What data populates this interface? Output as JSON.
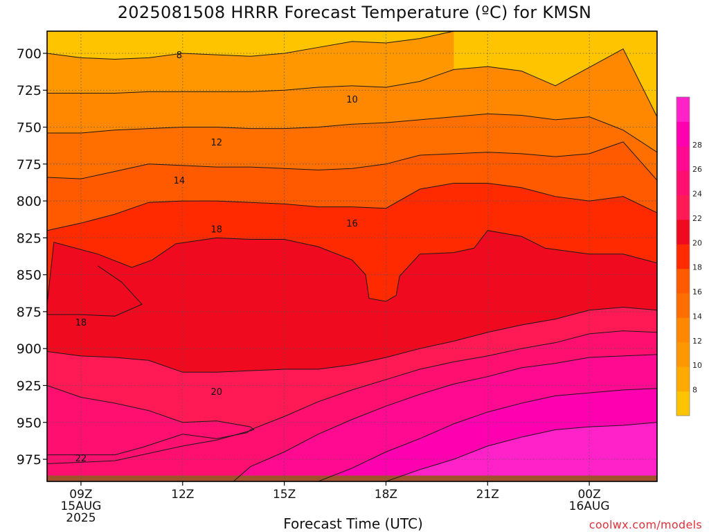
{
  "chart_data": {
    "type": "heatmap",
    "title": "2025081508 HRRR Forecast Temperature (ºC) for KMSN",
    "xlabel": "Forecast Time (UTC)",
    "credit": "coolwx.com/models",
    "x_ticks": [
      {
        "hour": 9,
        "lines": [
          "09Z",
          "15AUG",
          "2025"
        ]
      },
      {
        "hour": 12,
        "lines": [
          "12Z"
        ]
      },
      {
        "hour": 15,
        "lines": [
          "15Z"
        ]
      },
      {
        "hour": 18,
        "lines": [
          "18Z"
        ]
      },
      {
        "hour": 21,
        "lines": [
          "21Z"
        ]
      },
      {
        "hour": 24,
        "lines": [
          "00Z",
          "16AUG"
        ]
      }
    ],
    "xlim": [
      8,
      26
    ],
    "ylabel": "",
    "y_ticks": [
      700,
      725,
      750,
      775,
      800,
      825,
      850,
      875,
      900,
      925,
      950,
      975
    ],
    "ylim": [
      685,
      990
    ],
    "grid": true,
    "colorbar": {
      "levels": [
        6,
        8,
        10,
        12,
        14,
        16,
        18,
        20,
        22,
        24,
        26,
        28,
        30
      ],
      "labels": [
        8,
        10,
        12,
        14,
        16,
        18,
        20,
        22,
        24,
        26,
        28
      ],
      "colors": [
        "#ffc400",
        "#ffaa00",
        "#ff9800",
        "#ff8800",
        "#ff6f00",
        "#ff5a00",
        "#ff2a00",
        "#ef0a20",
        "#ff1a55",
        "#ff1070",
        "#ff0a90",
        "#ff00b0",
        "#ff22c8"
      ]
    },
    "contours": [
      {
        "level": 8,
        "label_at": [
          11.9,
          701
        ],
        "points": [
          [
            8,
            700
          ],
          [
            9,
            703
          ],
          [
            10,
            704
          ],
          [
            11,
            703
          ],
          [
            12,
            700
          ],
          [
            13,
            701
          ],
          [
            14,
            702
          ],
          [
            15,
            700
          ],
          [
            16,
            696
          ],
          [
            17,
            692
          ],
          [
            18,
            693
          ],
          [
            19,
            690
          ],
          [
            20,
            685
          ]
        ]
      },
      {
        "level": 10,
        "label_at": [
          17.0,
          731
        ],
        "points": [
          [
            8,
            727
          ],
          [
            9,
            727
          ],
          [
            10,
            727
          ],
          [
            11,
            726
          ],
          [
            12,
            726
          ],
          [
            13,
            726
          ],
          [
            14,
            726
          ],
          [
            15,
            725
          ],
          [
            16,
            723
          ],
          [
            17,
            722
          ],
          [
            18,
            723
          ],
          [
            19,
            719
          ],
          [
            20,
            711
          ],
          [
            21,
            709
          ],
          [
            22,
            712
          ],
          [
            23,
            722
          ],
          [
            25,
            697
          ],
          [
            26,
            743
          ]
        ]
      },
      {
        "level": 12,
        "label_at": [
          13.0,
          760
        ],
        "points": [
          [
            8,
            754
          ],
          [
            9,
            754
          ],
          [
            10,
            752
          ],
          [
            11,
            751
          ],
          [
            12,
            750
          ],
          [
            13,
            750
          ],
          [
            14,
            751
          ],
          [
            15,
            751
          ],
          [
            16,
            750
          ],
          [
            17,
            748
          ],
          [
            18,
            747
          ],
          [
            19,
            745
          ],
          [
            20,
            743
          ],
          [
            21,
            741
          ],
          [
            22,
            742
          ],
          [
            23,
            745
          ],
          [
            24,
            743
          ],
          [
            25,
            752
          ],
          [
            26,
            767
          ]
        ]
      },
      {
        "level": 14,
        "label_at": [
          11.9,
          786
        ],
        "points": [
          [
            8,
            784
          ],
          [
            9,
            785
          ],
          [
            10,
            780
          ],
          [
            11,
            775
          ],
          [
            12,
            776
          ],
          [
            13,
            777
          ],
          [
            14,
            777
          ],
          [
            15,
            778
          ],
          [
            16,
            779
          ],
          [
            17,
            778
          ],
          [
            18,
            775
          ],
          [
            19,
            769
          ],
          [
            20,
            768
          ],
          [
            21,
            767
          ],
          [
            22,
            768
          ],
          [
            23,
            770
          ],
          [
            24,
            768
          ],
          [
            25,
            760
          ],
          [
            26,
            786
          ]
        ]
      },
      {
        "level": 16,
        "label_at": [
          17.0,
          815
        ],
        "points": [
          [
            8,
            820
          ],
          [
            9,
            815
          ],
          [
            10,
            809
          ],
          [
            11,
            801
          ],
          [
            12,
            800
          ],
          [
            13,
            800
          ],
          [
            14,
            801
          ],
          [
            15,
            802
          ],
          [
            16,
            804
          ],
          [
            17,
            804
          ],
          [
            18,
            805
          ],
          [
            19,
            792
          ],
          [
            20,
            788
          ],
          [
            21,
            788
          ],
          [
            22,
            791
          ],
          [
            23,
            797
          ],
          [
            24,
            800
          ],
          [
            25,
            797
          ],
          [
            26,
            808
          ]
        ]
      },
      {
        "level": 18,
        "label_at": [
          13.0,
          819
        ],
        "points": [
          [
            8,
            870
          ],
          [
            8.2,
            828
          ],
          [
            9.5,
            836
          ],
          [
            10.5,
            845
          ],
          [
            11.1,
            840
          ],
          [
            11.8,
            829
          ],
          [
            13,
            825
          ],
          [
            14,
            826
          ],
          [
            15,
            826
          ],
          [
            16,
            831
          ],
          [
            17,
            840
          ],
          [
            17.4,
            850
          ],
          [
            17.5,
            866
          ],
          [
            18,
            868
          ],
          [
            18.3,
            864
          ],
          [
            18.4,
            851
          ],
          [
            19,
            836
          ],
          [
            20,
            835
          ],
          [
            20.6,
            832
          ],
          [
            21,
            820
          ],
          [
            22,
            824
          ],
          [
            22.7,
            832
          ],
          [
            24,
            836
          ],
          [
            25,
            836
          ],
          [
            26,
            842
          ]
        ]
      },
      {
        "level": 18,
        "label_at": [
          9.0,
          882
        ],
        "points": [
          [
            8,
            877
          ],
          [
            9,
            877
          ],
          [
            10,
            878
          ],
          [
            10.8,
            870
          ],
          [
            10.2,
            855
          ],
          [
            9.5,
            844
          ]
        ]
      },
      {
        "level": 20,
        "label_at": [
          13.0,
          929
        ],
        "points": [
          [
            8,
            902
          ],
          [
            9,
            905
          ],
          [
            10,
            906
          ],
          [
            11,
            908
          ],
          [
            12,
            916
          ],
          [
            13,
            916
          ],
          [
            14,
            915
          ],
          [
            15,
            914
          ],
          [
            16,
            914
          ],
          [
            17,
            911
          ],
          [
            18,
            906
          ],
          [
            19,
            900
          ],
          [
            20,
            895
          ],
          [
            21,
            889
          ],
          [
            22,
            884
          ],
          [
            23,
            880
          ],
          [
            24,
            874
          ],
          [
            25,
            872
          ],
          [
            26,
            874
          ]
        ]
      },
      {
        "level": 22,
        "label_at": [
          9.0,
          974
        ],
        "points": [
          [
            8,
            972
          ],
          [
            9,
            972
          ],
          [
            10,
            972
          ],
          [
            10.8,
            967
          ],
          [
            12,
            958
          ],
          [
            13,
            961
          ],
          [
            13.9,
            957
          ],
          [
            14,
            955
          ],
          [
            15,
            946
          ],
          [
            16,
            936
          ],
          [
            17,
            928
          ],
          [
            18,
            921
          ],
          [
            19,
            914
          ],
          [
            20,
            909
          ],
          [
            21,
            905
          ],
          [
            22,
            900
          ],
          [
            23,
            896
          ],
          [
            24,
            890
          ],
          [
            25,
            888
          ],
          [
            26,
            889
          ]
        ]
      },
      {
        "level": 22,
        "label_at": null,
        "points": [
          [
            8,
            925
          ],
          [
            9,
            933
          ],
          [
            10,
            937
          ],
          [
            11,
            942
          ],
          [
            12,
            950
          ],
          [
            13,
            949
          ],
          [
            14,
            953
          ],
          [
            14.1,
            955
          ],
          [
            13,
            962
          ],
          [
            12,
            966
          ],
          [
            11,
            971
          ],
          [
            10,
            976
          ],
          [
            8,
            978
          ]
        ]
      },
      {
        "level": 24,
        "label_at": null,
        "points": [
          [
            13.5,
            990
          ],
          [
            14,
            980
          ],
          [
            15,
            970
          ],
          [
            16,
            958
          ],
          [
            17,
            948
          ],
          [
            18,
            939
          ],
          [
            19,
            931
          ],
          [
            20,
            924
          ],
          [
            21,
            919
          ],
          [
            22,
            913
          ],
          [
            23,
            910
          ],
          [
            24,
            906
          ],
          [
            25,
            905
          ],
          [
            26,
            904
          ]
        ]
      },
      {
        "level": 26,
        "label_at": null,
        "points": [
          [
            16,
            990
          ],
          [
            17,
            981
          ],
          [
            18,
            970
          ],
          [
            19,
            961
          ],
          [
            20,
            951
          ],
          [
            21,
            943
          ],
          [
            22,
            937
          ],
          [
            23,
            932
          ],
          [
            24,
            930
          ],
          [
            25,
            928
          ],
          [
            26,
            927
          ]
        ]
      },
      {
        "level": 28,
        "label_at": null,
        "points": [
          [
            18,
            990
          ],
          [
            19,
            982
          ],
          [
            20,
            975
          ],
          [
            21,
            966
          ],
          [
            22,
            960
          ],
          [
            23,
            955
          ],
          [
            24,
            953
          ],
          [
            25,
            952
          ],
          [
            26,
            950
          ]
        ]
      }
    ]
  }
}
